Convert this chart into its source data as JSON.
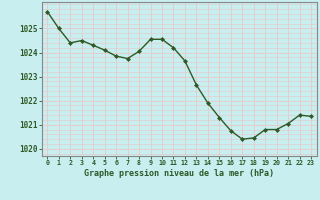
{
  "x": [
    0,
    1,
    2,
    3,
    4,
    5,
    6,
    7,
    8,
    9,
    10,
    11,
    12,
    13,
    14,
    15,
    16,
    17,
    18,
    19,
    20,
    21,
    22,
    23
  ],
  "y": [
    1025.7,
    1025.0,
    1024.4,
    1024.5,
    1024.3,
    1024.1,
    1023.85,
    1023.75,
    1024.05,
    1024.55,
    1024.55,
    1024.2,
    1023.65,
    1022.65,
    1021.9,
    1021.3,
    1020.75,
    1020.4,
    1020.45,
    1020.8,
    1020.8,
    1021.05,
    1021.4,
    1021.35
  ],
  "line_color": "#2d5a27",
  "marker": "D",
  "marker_size": 2.0,
  "line_width": 1.0,
  "bg_color": "#c8eef0",
  "grid_color_major": "#e8c8c8",
  "grid_color_minor": "#e8c8c8",
  "xlabel": "Graphe pression niveau de la mer (hPa)",
  "xlabel_color": "#2d5a27",
  "tick_color": "#2d5a27",
  "ylabel_ticks": [
    1020,
    1021,
    1022,
    1023,
    1024,
    1025
  ],
  "xlim": [
    -0.5,
    23.5
  ],
  "ylim": [
    1019.7,
    1026.1
  ],
  "border_color": "#888888"
}
